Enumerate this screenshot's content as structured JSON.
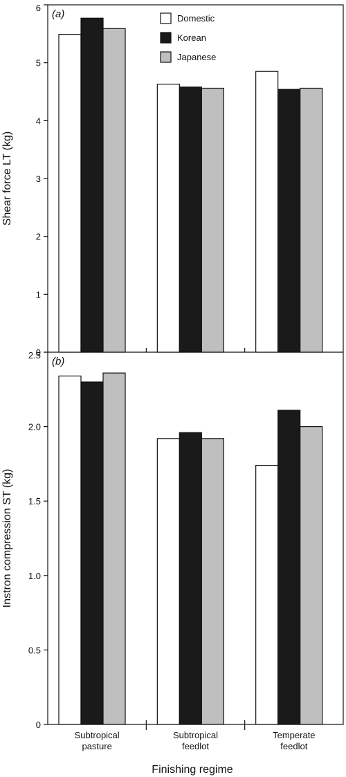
{
  "chart_data": {
    "type": "bar",
    "categories": [
      "Subtropical pasture",
      "Subtropical feedlot",
      "Temperate feedlot"
    ],
    "category_lines": [
      [
        "Subtropical",
        "pasture"
      ],
      [
        "Subtropical",
        "feedlot"
      ],
      [
        "Temperate",
        "feedlot"
      ]
    ],
    "xlabel": "Finishing regime",
    "legend": {
      "placement": "top-center",
      "entries": [
        "Domestic",
        "Korean",
        "Japanese"
      ]
    },
    "colors": [
      "#ffffff",
      "#1a1a1a",
      "#bfbfbf"
    ],
    "panels": [
      {
        "label": "(a)",
        "ylabel": "Shear force LT (kg)",
        "ylim": [
          0,
          6
        ],
        "yticks": [
          "0",
          "1",
          "2",
          "3",
          "4",
          "5",
          "6"
        ],
        "series": [
          {
            "name": "Domestic",
            "values": [
              5.49,
              4.63,
              4.85
            ]
          },
          {
            "name": "Korean",
            "values": [
              5.77,
              4.58,
              4.54
            ]
          },
          {
            "name": "Japanese",
            "values": [
              5.59,
              4.56,
              4.56
            ]
          }
        ]
      },
      {
        "label": "(b)",
        "ylabel": "Instron compression ST (kg)",
        "ylim": [
          0,
          2.5
        ],
        "yticks": [
          "0",
          "0.5",
          "1.0",
          "1.5",
          "2.0",
          "2.5"
        ],
        "series": [
          {
            "name": "Domestic",
            "values": [
              2.34,
              1.92,
              1.74
            ]
          },
          {
            "name": "Korean",
            "values": [
              2.3,
              1.96,
              2.11
            ]
          },
          {
            "name": "Japanese",
            "values": [
              2.36,
              1.92,
              2.0
            ]
          }
        ]
      }
    ]
  }
}
